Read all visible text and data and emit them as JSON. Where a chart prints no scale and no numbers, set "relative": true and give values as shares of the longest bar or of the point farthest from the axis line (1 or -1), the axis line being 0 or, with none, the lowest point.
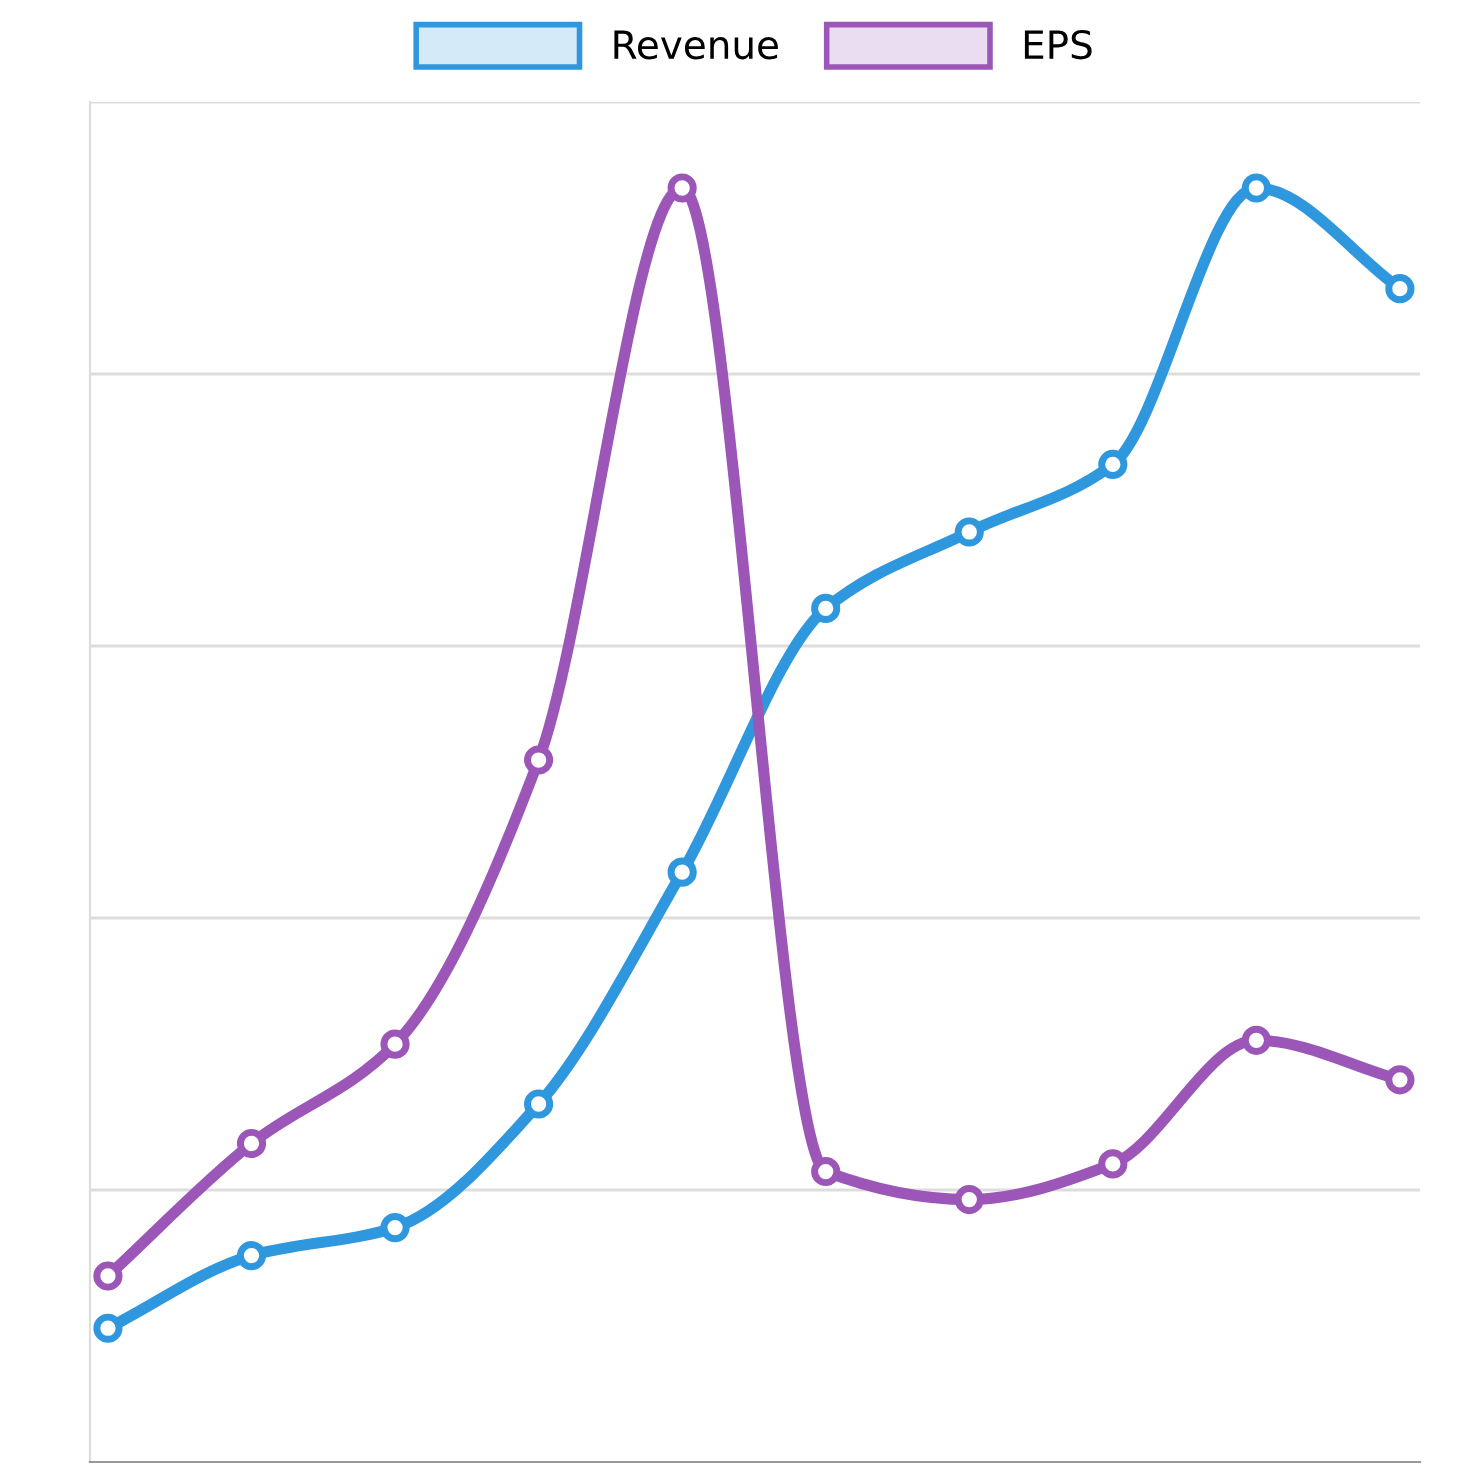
{
  "chart_data": {
    "type": "line",
    "relative": true,
    "categories": [
      null,
      null,
      null,
      null,
      null,
      null,
      null,
      null,
      null,
      null
    ],
    "series": [
      {
        "name": "Revenue",
        "color": "#2f97de",
        "values": [
          0.105,
          0.162,
          0.184,
          0.281,
          0.463,
          0.67,
          0.73,
          0.783,
          1,
          0.921
        ]
      },
      {
        "name": "EPS",
        "color": "#9b56b8",
        "values": [
          0.146,
          0.25,
          0.328,
          0.551,
          1,
          0.228,
          0.206,
          0.234,
          0.331,
          0.3
        ]
      }
    ],
    "grid": "y",
    "legend": "top",
    "marker": "circle",
    "line_style": "solid"
  }
}
